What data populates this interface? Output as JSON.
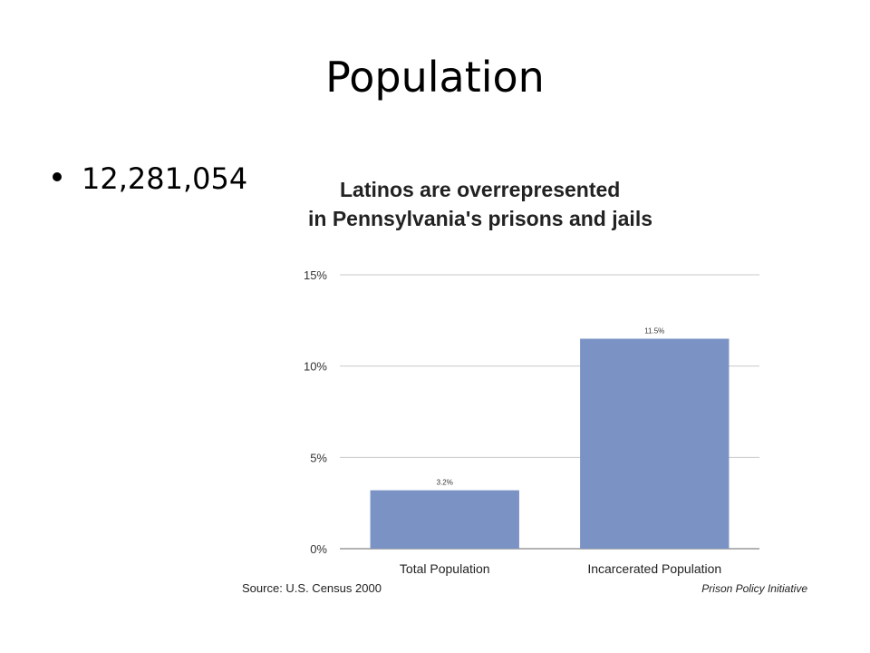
{
  "slide": {
    "title": "Population",
    "bullets": [
      "12,281,054"
    ]
  },
  "chart_data": {
    "type": "bar",
    "title_lines": [
      "Latinos are overrepresented",
      "in Pennsylvania's prisons and jails"
    ],
    "categories": [
      "Total Population",
      "Incarcerated Population"
    ],
    "values": [
      3.2,
      11.5
    ],
    "value_labels": [
      "3.2%",
      "11.5%"
    ],
    "yticks": [
      0,
      5,
      10,
      15
    ],
    "ytick_labels": [
      "0%",
      "5%",
      "10%",
      "15%"
    ],
    "ylim": [
      0,
      15
    ],
    "grid": true,
    "bar_color": "#7b93c4",
    "source": "Source: U.S. Census 2000",
    "credit": "Prison Policy Initiative"
  }
}
